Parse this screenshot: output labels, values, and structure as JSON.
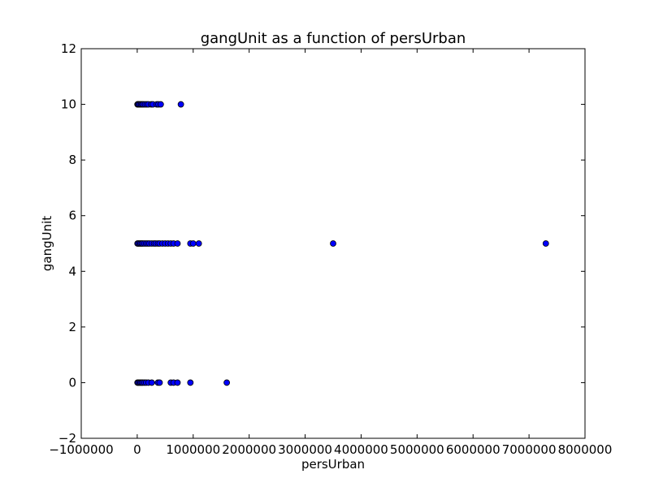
{
  "chart_data": {
    "type": "scatter",
    "title": "gangUnit as a function of persUrban",
    "xlabel": "persUrban",
    "ylabel": "gangUnit",
    "xlim": [
      -1000000,
      8000000
    ],
    "ylim": [
      -2,
      12
    ],
    "xticks": [
      -1000000,
      0,
      1000000,
      2000000,
      3000000,
      4000000,
      5000000,
      6000000,
      7000000,
      8000000
    ],
    "xtick_labels": [
      "−1000000",
      "0",
      "1000000",
      "2000000",
      "3000000",
      "4000000",
      "5000000",
      "6000000",
      "7000000",
      "8000000"
    ],
    "yticks": [
      -2,
      0,
      2,
      4,
      6,
      8,
      10,
      12
    ],
    "ytick_labels": [
      "−2",
      "0",
      "2",
      "4",
      "6",
      "8",
      "10",
      "12"
    ],
    "grid": false,
    "marker_color": "#0000ff",
    "series": [
      {
        "x": [
          5000,
          15000,
          30000,
          50000,
          70000,
          90000,
          110000,
          140000,
          170000,
          200000,
          250000,
          280000,
          350000,
          380000,
          420000,
          780000,
          5000,
          20000,
          40000,
          60000,
          80000,
          100000,
          130000,
          160000,
          190000,
          220000,
          260000,
          300000,
          330000,
          370000,
          400000,
          450000,
          500000,
          550000,
          600000,
          650000,
          720000,
          950000,
          1000000,
          1100000,
          3500000,
          7300000,
          5000,
          20000,
          40000,
          60000,
          80000,
          100000,
          130000,
          160000,
          200000,
          260000,
          370000,
          400000,
          600000,
          650000,
          720000,
          950000,
          1600000
        ],
        "y": [
          10,
          10,
          10,
          10,
          10,
          10,
          10,
          10,
          10,
          10,
          10,
          10,
          10,
          10,
          10,
          10,
          5,
          5,
          5,
          5,
          5,
          5,
          5,
          5,
          5,
          5,
          5,
          5,
          5,
          5,
          5,
          5,
          5,
          5,
          5,
          5,
          5,
          5,
          5,
          5,
          5,
          5,
          0,
          0,
          0,
          0,
          0,
          0,
          0,
          0,
          0,
          0,
          0,
          0,
          0,
          0,
          0,
          0,
          0
        ]
      }
    ]
  }
}
